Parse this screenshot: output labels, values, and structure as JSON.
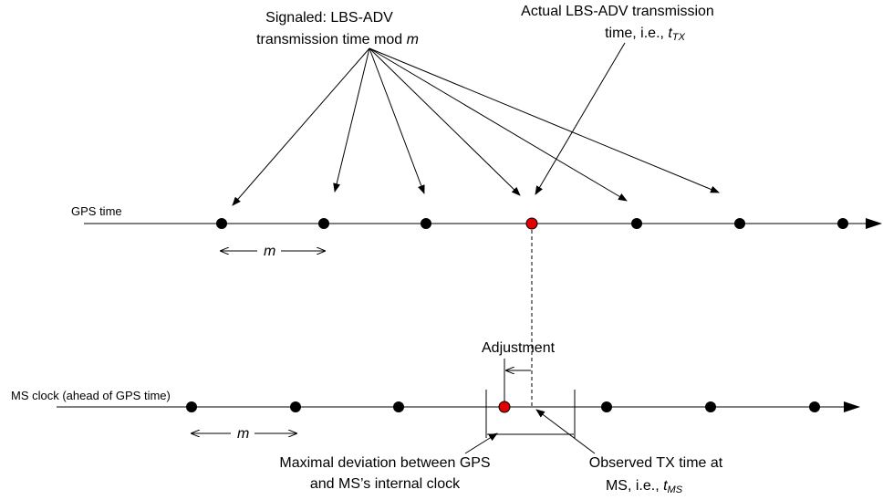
{
  "colors": {
    "stroke": "#000000",
    "dot": "#000000",
    "highlight_dot": "#e00000",
    "background": "#ffffff"
  },
  "gps_axis": {
    "label": "GPS time",
    "m_label": "m"
  },
  "ms_axis": {
    "label": "MS clock (ahead of GPS time)",
    "m_label": "m"
  },
  "signaled": {
    "line1": "Signaled: LBS-ADV",
    "line2_prefix": "transmission time mod ",
    "line2_var": "m"
  },
  "actual": {
    "line1": "Actual LBS-ADV transmission",
    "line2_prefix": "time, i.e., ",
    "line2_var": "t",
    "line2_sub": "TX"
  },
  "adjustment": {
    "label": "Adjustment"
  },
  "max_dev": {
    "line1": "Maximal deviation between GPS",
    "line2": "and MS’s internal clock"
  },
  "observed": {
    "line1": "Observed TX time at",
    "line2_prefix": "MS, i.e., ",
    "line2_var": "t",
    "line2_sub": "MS"
  }
}
